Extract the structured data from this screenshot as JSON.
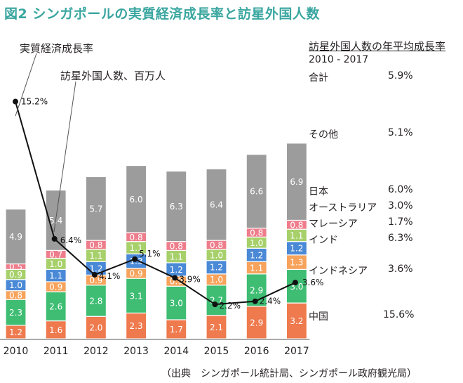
{
  "title": "図2 シンガポールの実質経済成長率と訪星外国人数",
  "line_series_label": "実質経済成長率",
  "bar_series_label": "訪星外国人数、百万人",
  "legend_heading": "訪星外国人数の年平均成長率",
  "legend_period": "2010 - 2017",
  "legend_rows": [
    {
      "name": "合計",
      "rate": "5.9%"
    },
    {
      "name": "その他",
      "rate": "5.1%"
    },
    {
      "name": "日本",
      "rate": "6.0%"
    },
    {
      "name": "オーストラリア",
      "rate": "3.0%"
    },
    {
      "name": "マレーシア",
      "rate": "1.7%"
    },
    {
      "name": "インド",
      "rate": "6.3%"
    },
    {
      "name": "インドネシア",
      "rate": "3.6%"
    },
    {
      "name": "中国",
      "rate": "15.6%"
    }
  ],
  "source": "（出典　シンガポール統計局、シンガポール政府観光局）",
  "colors": {
    "title": "#3aa6a0",
    "中国": "#ee7a4e",
    "インドネシア": "#3ebd73",
    "インド": "#f7a35c",
    "マレーシア": "#4a89d6",
    "オーストラリア": "#a7d06b",
    "日本": "#ee7d8c",
    "その他": "#9c9c9c",
    "line": "#111111"
  },
  "chart_data": {
    "type": "bar",
    "stacked": true,
    "categories": [
      "2010",
      "2011",
      "2012",
      "2013",
      "2014",
      "2015",
      "2016",
      "2017"
    ],
    "series": [
      {
        "name": "中国",
        "values": [
          "1.2",
          "1.6",
          "2.0",
          "2.3",
          "1.7",
          "2.1",
          "2.9",
          "3.2"
        ]
      },
      {
        "name": "インドネシア",
        "values": [
          "2.3",
          "2.6",
          "2.8",
          "3.1",
          "3.0",
          "2.7",
          "2.9",
          "3.0"
        ]
      },
      {
        "name": "インド",
        "values": [
          "0.8",
          "0.9",
          "0.9",
          "0.9",
          "0.9",
          "1.0",
          "1.1",
          "1.3"
        ]
      },
      {
        "name": "マレーシア",
        "values": [
          "1.0",
          "1.1",
          "1.2",
          "1.3",
          "1.2",
          "1.2",
          "1.2",
          "1.2"
        ]
      },
      {
        "name": "オーストラリア",
        "values": [
          "0.9",
          "1.0",
          "1.1",
          "1.1",
          "1.1",
          "1.0",
          "1.0",
          "1.1"
        ]
      },
      {
        "name": "日本",
        "values": [
          "0.5",
          "0.7",
          "0.8",
          "0.8",
          "0.8",
          "0.8",
          "0.8",
          "0.8"
        ]
      },
      {
        "name": "その他",
        "values": [
          "4.9",
          "5.4",
          "5.7",
          "6.0",
          "6.3",
          "6.4",
          "6.6",
          "6.9"
        ]
      }
    ],
    "line": {
      "name": "実質経済成長率",
      "values": [
        15.2,
        6.4,
        4.1,
        5.1,
        3.9,
        2.2,
        2.4,
        3.6
      ],
      "labels": [
        "15.2%",
        "6.4%",
        "4.1%",
        "5.1%",
        "3.9%",
        "2.2%",
        "2.4%",
        "3.6%"
      ]
    }
  }
}
